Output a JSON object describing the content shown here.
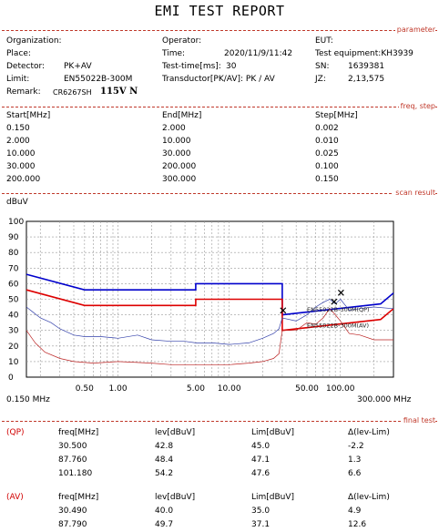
{
  "title": "EMI TEST REPORT",
  "sections": {
    "parameter": "parameter",
    "freq_step": "freq, step",
    "scan_result": "scan result",
    "final_test": "final test"
  },
  "params": {
    "organization": "Organization:",
    "operator": "Operator:",
    "eut": "EUT:",
    "place": "Place:",
    "time_label": "Time:",
    "time_value": "2020/11/9/11:42",
    "test_equipment": "Test equipment:KH3939",
    "detector_label": "Detector:",
    "detector_value": "PK+AV",
    "test_time_label": "Test-time[ms]:",
    "test_time_value": "30",
    "sn_label": "SN:",
    "sn_value": "1639381",
    "limit_label": "Limit:",
    "limit_value": "EN55022B-300M",
    "transductor": "Transductor[PK/AV]: PK  /  AV",
    "jz_label": "JZ:",
    "jz_value": "2,13,575",
    "remark_label": "Remark:",
    "remark_value": "CR6267SH",
    "remark_hand": "115V N"
  },
  "freq_table": {
    "headers": [
      "Start[MHz]",
      "End[MHz]",
      "Step[MHz]"
    ],
    "rows": [
      [
        "0.150",
        "2.000",
        "0.002"
      ],
      [
        "2.000",
        "10.000",
        "0.010"
      ],
      [
        "10.000",
        "30.000",
        "0.025"
      ],
      [
        "30.000",
        "200.000",
        "0.100"
      ],
      [
        "200.000",
        "300.000",
        "0.150"
      ]
    ]
  },
  "chart_data": {
    "type": "line",
    "ylabel": "dBuV",
    "x_scale": "log",
    "xlim": [
      0.15,
      300
    ],
    "ylim": [
      0,
      100
    ],
    "y_ticks": [
      0,
      10,
      20,
      30,
      40,
      50,
      60,
      70,
      80,
      90,
      100
    ],
    "x_tick_labels": [
      {
        "x": 0.5,
        "label": "0.50"
      },
      {
        "x": 1,
        "label": "1.00"
      },
      {
        "x": 5,
        "label": "5.00"
      },
      {
        "x": 10,
        "label": "10.00"
      },
      {
        "x": 50,
        "label": "50.00"
      },
      {
        "x": 100,
        "label": "100.00"
      }
    ],
    "x_start_label": "0.150 MHz",
    "x_end_label": "300.000 MHz",
    "grid": true,
    "series": [
      {
        "name": "EN55022B-300M(QP)",
        "color": "#0000cc",
        "points": [
          [
            0.15,
            66
          ],
          [
            0.5,
            56
          ],
          [
            5,
            56
          ],
          [
            5,
            60
          ],
          [
            30,
            60
          ],
          [
            30,
            40
          ],
          [
            230,
            47
          ],
          [
            300,
            54
          ]
        ]
      },
      {
        "name": "EN55022B-300M(AV)",
        "color": "#dd0000",
        "points": [
          [
            0.15,
            56
          ],
          [
            0.5,
            46
          ],
          [
            5,
            46
          ],
          [
            5,
            50
          ],
          [
            30,
            50
          ],
          [
            30,
            30
          ],
          [
            230,
            37
          ],
          [
            300,
            44
          ]
        ]
      },
      {
        "name": "PK",
        "color": "#3340aa",
        "points": [
          [
            0.15,
            45
          ],
          [
            0.17,
            42
          ],
          [
            0.2,
            38
          ],
          [
            0.25,
            35
          ],
          [
            0.3,
            31
          ],
          [
            0.4,
            27
          ],
          [
            0.5,
            26
          ],
          [
            0.7,
            26
          ],
          [
            1,
            25
          ],
          [
            1.5,
            27
          ],
          [
            2,
            24
          ],
          [
            3,
            23
          ],
          [
            4,
            23
          ],
          [
            5,
            22
          ],
          [
            7,
            22
          ],
          [
            10,
            21
          ],
          [
            15,
            22
          ],
          [
            20,
            25
          ],
          [
            25,
            28
          ],
          [
            28,
            31
          ],
          [
            30,
            38
          ],
          [
            40,
            36
          ],
          [
            50,
            40
          ],
          [
            60,
            45
          ],
          [
            70,
            48
          ],
          [
            80,
            50
          ],
          [
            90,
            47
          ],
          [
            100,
            50
          ],
          [
            120,
            43
          ],
          [
            150,
            44
          ],
          [
            200,
            45
          ],
          [
            300,
            44
          ]
        ]
      },
      {
        "name": "AV",
        "color": "#bb2222",
        "points": [
          [
            0.15,
            30
          ],
          [
            0.18,
            22
          ],
          [
            0.22,
            16
          ],
          [
            0.3,
            12
          ],
          [
            0.4,
            10
          ],
          [
            0.6,
            9
          ],
          [
            1,
            10
          ],
          [
            2,
            9
          ],
          [
            3,
            8
          ],
          [
            5,
            8
          ],
          [
            10,
            8
          ],
          [
            15,
            9
          ],
          [
            20,
            10
          ],
          [
            25,
            12
          ],
          [
            28,
            15
          ],
          [
            30,
            30
          ],
          [
            40,
            30
          ],
          [
            50,
            35
          ],
          [
            60,
            34
          ],
          [
            70,
            38
          ],
          [
            80,
            44
          ],
          [
            90,
            40
          ],
          [
            100,
            36
          ],
          [
            120,
            28
          ],
          [
            150,
            27
          ],
          [
            200,
            24
          ],
          [
            300,
            24
          ]
        ]
      }
    ],
    "limit_labels": [
      {
        "x": 50,
        "y": 42,
        "text": "EN55022B-300M(QP)"
      },
      {
        "x": 50,
        "y": 32,
        "text": "EN55022B-300M(AV)"
      }
    ],
    "markers": [
      {
        "x": 30.5,
        "y": 42.8
      },
      {
        "x": 87.76,
        "y": 48.4
      },
      {
        "x": 101.18,
        "y": 54.2
      }
    ]
  },
  "qp_table": {
    "label": "(QP)",
    "headers": [
      "freq[MHz]",
      "lev[dBuV]",
      "Lim[dBuV]",
      "Δ(lev-Lim)"
    ],
    "rows": [
      [
        "30.500",
        "42.8",
        "45.0",
        "-2.2"
      ],
      [
        "87.760",
        "48.4",
        "47.1",
        "1.3"
      ],
      [
        "101.180",
        "54.2",
        "47.6",
        "6.6"
      ]
    ]
  },
  "av_table": {
    "label": "(AV)",
    "headers": [
      "freq[MHz]",
      "lev[dBuV]",
      "Lim[dBuV]",
      "Δ(lev-Lim)"
    ],
    "rows": [
      [
        "30.490",
        "40.0",
        "35.0",
        "4.9"
      ],
      [
        "87.790",
        "49.7",
        "37.1",
        "12.6"
      ]
    ]
  }
}
